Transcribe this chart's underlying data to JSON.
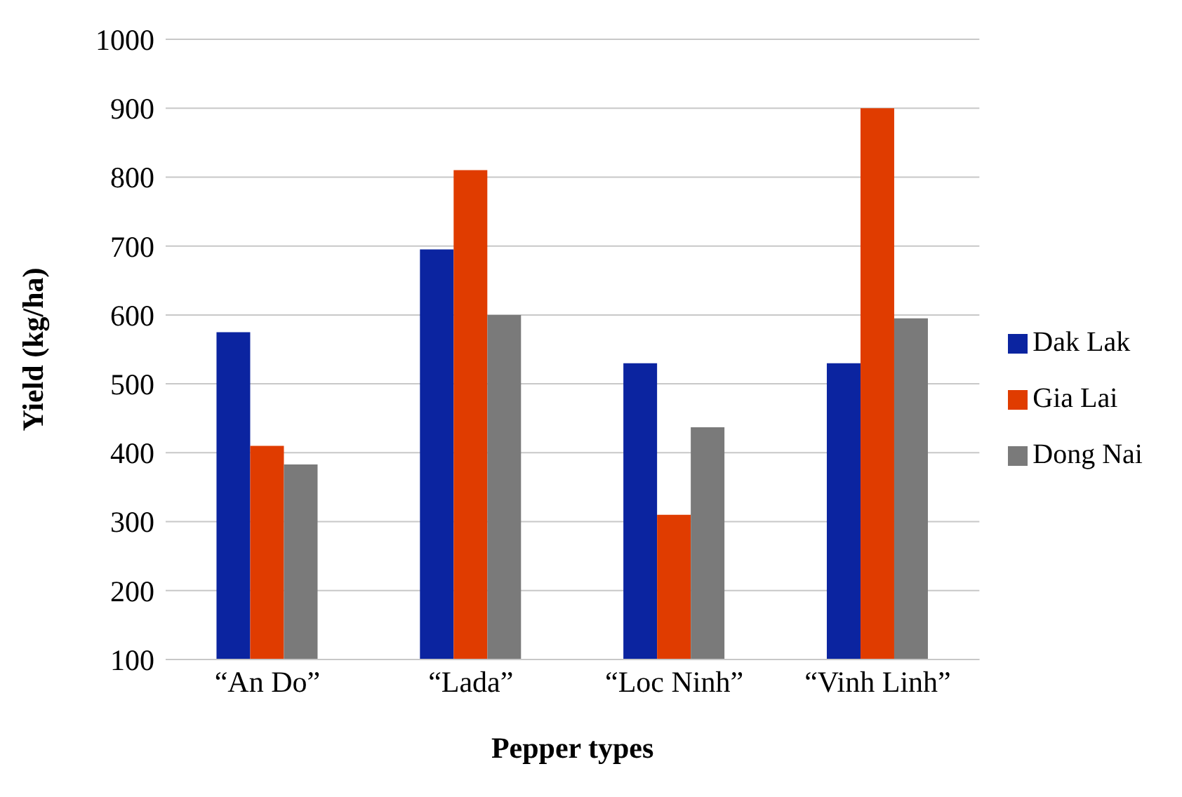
{
  "chart_data": {
    "type": "bar",
    "xlabel": "Pepper types",
    "ylabel": "Yield (kg/ha)",
    "categories": [
      "“An Do”",
      "“Lada”",
      "“Loc Ninh”",
      "“Vinh Linh”"
    ],
    "series": [
      {
        "name": "Dak Lak",
        "color": "#0b24a0",
        "values": [
          575,
          695,
          530,
          530
        ]
      },
      {
        "name": "Gia Lai",
        "color": "#e03c00",
        "values": [
          410,
          810,
          310,
          900
        ]
      },
      {
        "name": "Dong Nai",
        "color": "#7a7a7a",
        "values": [
          383,
          600,
          437,
          595
        ]
      }
    ],
    "ylim": [
      100,
      1000
    ],
    "yticks": [
      100,
      200,
      300,
      400,
      500,
      600,
      700,
      800,
      900,
      1000
    ],
    "grid": "y",
    "legend": "right"
  }
}
